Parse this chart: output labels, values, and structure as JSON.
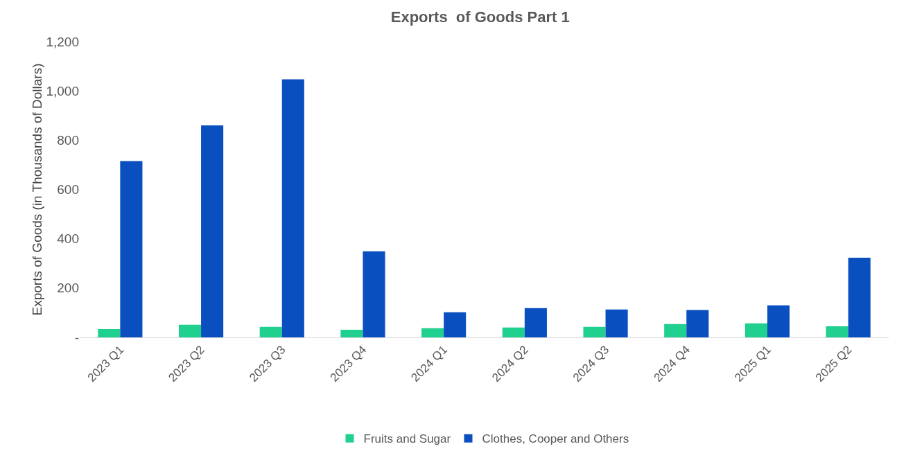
{
  "chart_data": {
    "type": "bar",
    "title": "Exports  of Goods Part 1",
    "ylabel": "Exports of Goods (in Thousands of Dollars)",
    "categories": [
      "2023 Q1",
      "2023 Q2",
      "2023 Q3",
      "2023 Q4",
      "2024 Q1",
      "2024 Q2",
      "2024 Q3",
      "2024 Q4",
      "2025 Q1",
      "2025 Q2"
    ],
    "series": [
      {
        "name": "Fruits and Sugar",
        "color": "#20d08e",
        "values": [
          34,
          51,
          43,
          31,
          37,
          40,
          43,
          54,
          57,
          45
        ]
      },
      {
        "name": "Clothes, Cooper and Others",
        "color": "#0a4fc0",
        "values": [
          715,
          860,
          1047,
          349,
          102,
          119,
          113,
          111,
          130,
          323
        ]
      }
    ],
    "ylim": [
      0,
      1200
    ],
    "yticks": [
      {
        "value": 0,
        "label": "-"
      },
      {
        "value": 200,
        "label": "200"
      },
      {
        "value": 400,
        "label": "400"
      },
      {
        "value": 600,
        "label": "600"
      },
      {
        "value": 800,
        "label": "800"
      },
      {
        "value": 1000,
        "label": "1,000"
      },
      {
        "value": 1200,
        "label": "1,200"
      }
    ],
    "grid": false,
    "legend": "bottom"
  }
}
